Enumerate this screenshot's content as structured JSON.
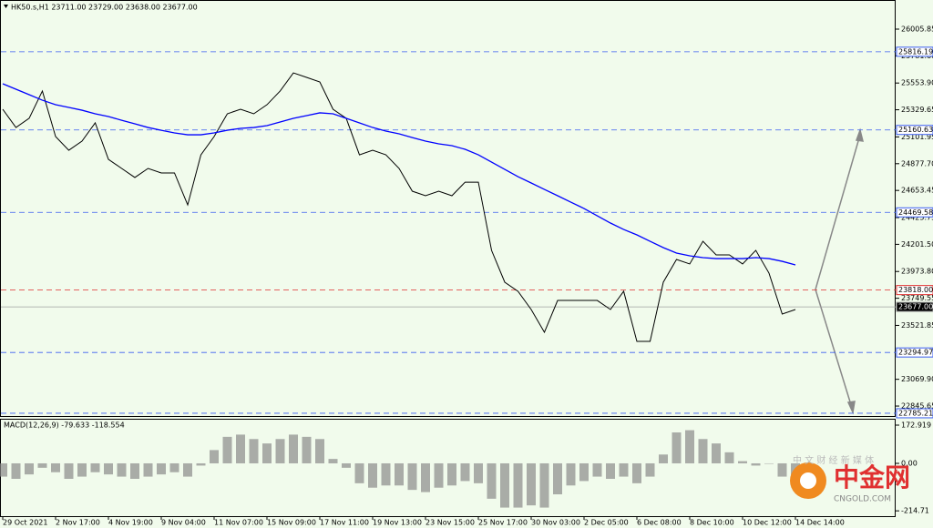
{
  "chart_data": [
    {
      "type": "line",
      "title": "HK50.s,H1  23711.00 23729.00 23638.00 23677.00",
      "categories": [
        "29 Oct 2021",
        null,
        null,
        null,
        "2 Nov 17:00",
        null,
        null,
        null,
        "4 Nov 19:00",
        null,
        null,
        null,
        "9 Nov 04:00",
        null,
        null,
        null,
        "11 Nov 07:00",
        null,
        null,
        null,
        "15 Nov 09:00",
        null,
        null,
        null,
        "17 Nov 11:00",
        null,
        null,
        null,
        "19 Nov 13:00",
        null,
        null,
        null,
        "23 Nov 15:00",
        null,
        null,
        null,
        "25 Nov 17:00",
        null,
        null,
        null,
        "30 Nov 03:00",
        null,
        null,
        null,
        "2 Dec 05:00",
        null,
        null,
        null,
        "6 Dec 08:00",
        null,
        null,
        null,
        "8 Dec 10:00",
        null,
        null,
        null,
        "10 Dec 12:00",
        null,
        null,
        null,
        "14 Dec 14:00"
      ],
      "series": [
        {
          "color": "#000000",
          "values": [
            25334,
            25181,
            25258,
            25487,
            25105,
            24990,
            25067,
            25220,
            24914,
            24838,
            24762,
            24838,
            24800,
            24800,
            24532,
            24952,
            25105,
            25296,
            25334,
            25296,
            25372,
            25487,
            25639,
            25601,
            25563,
            25334,
            25258,
            24952,
            24990,
            24952,
            24838,
            24647,
            24609,
            24647,
            24609,
            24723,
            24723,
            24151,
            23884,
            23808,
            23655,
            23464,
            23731,
            23731,
            23731,
            23731,
            23655,
            23808,
            23388,
            23388,
            23884,
            24075,
            24037,
            24227,
            24113,
            24113,
            24037,
            24151,
            23960,
            23617,
            23655
          ]
        },
        {
          "color": "#0000ff",
          "values": [
            25548,
            25502,
            25456,
            25410,
            25372,
            25349,
            25326,
            25296,
            25273,
            25242,
            25212,
            25181,
            25158,
            25136,
            25120,
            25120,
            25136,
            25158,
            25174,
            25181,
            25197,
            25227,
            25258,
            25281,
            25304,
            25296,
            25258,
            25220,
            25181,
            25151,
            25128,
            25097,
            25067,
            25044,
            25029,
            24998,
            24952,
            24891,
            24830,
            24769,
            24716,
            24662,
            24609,
            24555,
            24502,
            24441,
            24380,
            24326,
            24281,
            24227,
            24174,
            24128,
            24105,
            24090,
            24082,
            24082,
            24082,
            24090,
            24082,
            24059,
            24029
          ]
        }
      ],
      "ylim": [
        22762,
        26250
      ],
      "yticks": [
        26005.85,
        {
          "value": 25781.6,
          "label": "25781.60"
        },
        {
          "value": 25553.9,
          "label": "25553.90"
        },
        25329.65,
        25101.95,
        {
          "value": 24877.7,
          "label": "24877.70"
        },
        24653.45,
        24425.75,
        {
          "value": 24201.5,
          "label": "24201.50"
        },
        {
          "value": 23973.8,
          "label": "23973.80"
        },
        23749.55,
        23521.85,
        {
          "value": 23069.9,
          "label": "23069.90"
        },
        22845.65
      ],
      "levels": [
        {
          "value": 25816.19,
          "color": "#3a5cf0"
        },
        {
          "value": 25160.63,
          "color": "#3a5cf0"
        },
        {
          "value": 24469.58,
          "color": "#3a5cf0"
        },
        {
          "value": 23818,
          "label": "23818.00",
          "color": "#e03030"
        },
        {
          "value": 23677,
          "label": "23677.00",
          "color": "#a0a0a0"
        },
        {
          "value": 23294.97,
          "color": "#3a5cf0"
        },
        {
          "value": 22785.21,
          "color": "#3a5cf0"
        }
      ]
    },
    {
      "type": "bar",
      "title": "MACD(12,26,9) -79.633 -118.554",
      "color": "#8a8a8a",
      "values": [
        -60,
        -70,
        -50,
        -20,
        -40,
        -70,
        -60,
        -40,
        -50,
        -60,
        -70,
        -60,
        -50,
        -40,
        -60,
        -10,
        60,
        120,
        130,
        110,
        90,
        110,
        130,
        120,
        110,
        20,
        -20,
        -90,
        -110,
        -100,
        -100,
        -120,
        -130,
        -110,
        -100,
        -80,
        -90,
        -160,
        -200,
        -200,
        -190,
        -200,
        -140,
        -100,
        -80,
        -60,
        -70,
        -60,
        -90,
        -60,
        40,
        140,
        150,
        110,
        90,
        50,
        10,
        -10,
        0,
        -60,
        -100
      ],
      "ylim": [
        -238.8,
        201.7
      ],
      "yticks": [
        172.919,
        {
          "value": 0,
          "label": "0.00"
        },
        -214.71
      ]
    }
  ],
  "watermark": {
    "brand": "中金网",
    "site": "CNGOLD.COM",
    "slogan": "中 文 财 经 新 媒 体"
  }
}
